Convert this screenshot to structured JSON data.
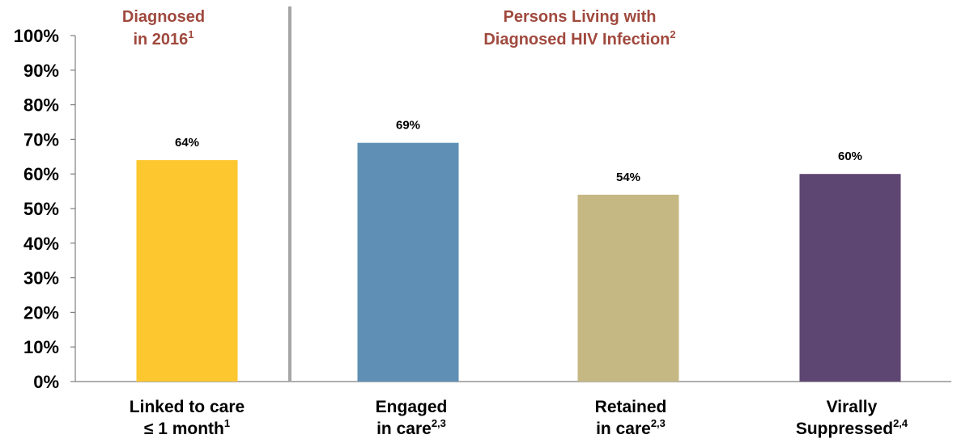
{
  "chart_data": {
    "type": "bar",
    "categories": [
      {
        "line1": "Linked to care",
        "line2": "≤ 1 month",
        "sup": "1"
      },
      {
        "line1": "Engaged",
        "line2": "in care",
        "sup": "2,3"
      },
      {
        "line1": "Retained",
        "line2": "in care",
        "sup": "2,3"
      },
      {
        "line1": "Virally",
        "line2": "Suppressed",
        "sup": "2,4"
      }
    ],
    "values": [
      64,
      69,
      54,
      60
    ],
    "value_labels": [
      "64%",
      "69%",
      "54%",
      "60%"
    ],
    "colors": [
      "#FDC72F",
      "#5F8FB4",
      "#C5B883",
      "#5E4673"
    ],
    "ylim": [
      0,
      100
    ],
    "yticks": [
      "0%",
      "10%",
      "20%",
      "30%",
      "40%",
      "50%",
      "60%",
      "70%",
      "80%",
      "90%",
      "100%"
    ],
    "grid": false,
    "group_headers": [
      {
        "line1": "Diagnosed",
        "line2": "in 2016",
        "sup": "1"
      },
      {
        "line1": "Persons Living with",
        "line2": "Diagnosed HIV Infection",
        "sup": "2"
      }
    ],
    "header_color": "#A0493E",
    "divider_color": "#A6A6A6"
  }
}
